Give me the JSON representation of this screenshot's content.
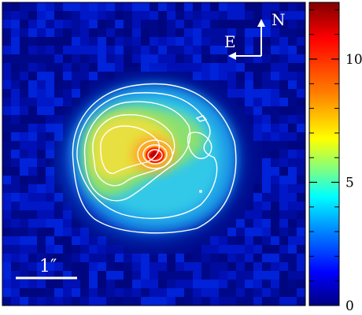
{
  "compass": {
    "north_label": "N",
    "east_label": "E"
  },
  "scale_bar": {
    "label": "1″"
  },
  "colorbar": {
    "ticks": [
      {
        "value": 0,
        "label": "0"
      },
      {
        "value": 5,
        "label": "5"
      },
      {
        "value": 10,
        "label": "10"
      }
    ],
    "min": 0,
    "max": 12.3,
    "colormap": [
      "#00007f",
      "#0000ff",
      "#0080ff",
      "#00ffff",
      "#80ff80",
      "#ffff00",
      "#ff8000",
      "#ff0000",
      "#800000"
    ]
  },
  "colors": {
    "annotation": "#ffffff",
    "frame": "#000000",
    "background": "#000a8c"
  }
}
